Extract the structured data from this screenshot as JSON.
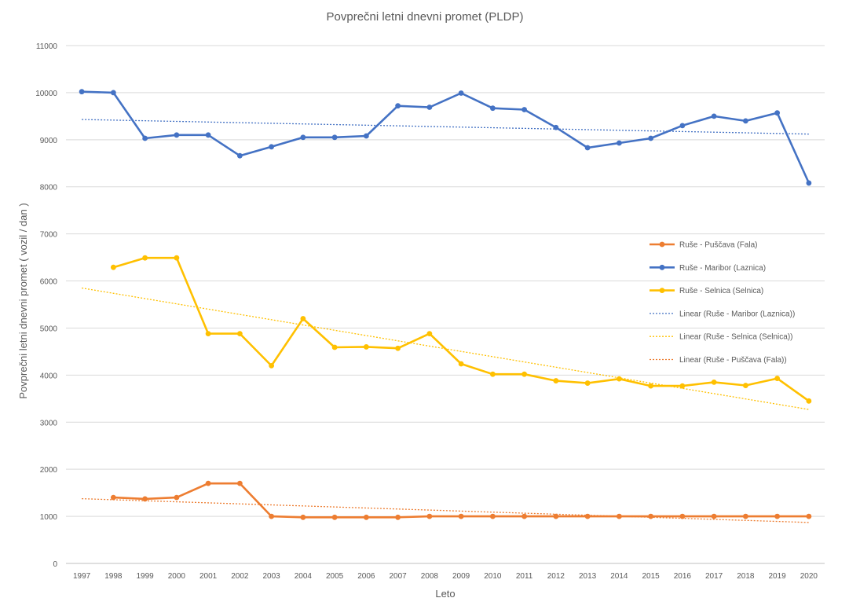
{
  "chart_data": {
    "type": "line",
    "title": "Povprečni letni dnevni promet (PLDP)",
    "xlabel": "Leto",
    "ylabel": "Povprečni letni dnevni promet  ( vozil / dan )",
    "ylim": [
      0,
      11000
    ],
    "yticks": [
      0,
      1000,
      2000,
      3000,
      4000,
      5000,
      6000,
      7000,
      8000,
      9000,
      10000,
      11000
    ],
    "categories": [
      "1997",
      "1998",
      "1999",
      "2000",
      "2001",
      "2002",
      "2003",
      "2004",
      "2005",
      "2006",
      "2007",
      "2008",
      "2009",
      "2010",
      "2011",
      "2012",
      "2013",
      "2014",
      "2015",
      "2016",
      "2017",
      "2018",
      "2019",
      "2020"
    ],
    "grid": true,
    "legend_position": "right",
    "series": [
      {
        "name": "Ruše - Puščava (Fala)",
        "color": "#ed7d31",
        "values": [
          null,
          1400,
          1370,
          1400,
          1700,
          1700,
          1000,
          980,
          980,
          980,
          980,
          1000,
          1000,
          1000,
          1000,
          1000,
          1000,
          1000,
          1000,
          1000,
          1000,
          1000,
          1000,
          1000
        ]
      },
      {
        "name": "Ruše - Maribor (Laznica)",
        "color": "#4472c4",
        "values": [
          10020,
          10000,
          9030,
          9100,
          9100,
          8660,
          8850,
          9050,
          9050,
          9080,
          9720,
          9690,
          9990,
          9670,
          9640,
          9260,
          8830,
          8930,
          9030,
          9300,
          9500,
          9400,
          9570,
          8080
        ]
      },
      {
        "name": "Ruše - Selnica (Selnica)",
        "color": "#ffc000",
        "values": [
          null,
          6290,
          6490,
          6490,
          4880,
          4880,
          4200,
          5200,
          4590,
          4600,
          4570,
          4880,
          4240,
          4020,
          4020,
          3880,
          3830,
          3920,
          3770,
          3770,
          3850,
          3780,
          3930,
          3450
        ]
      }
    ],
    "trendlines": [
      {
        "name": "Linear (Ruše - Maribor (Laznica))",
        "color": "#4472c4",
        "start": 9430,
        "end": 9120
      },
      {
        "name": "Linear (Ruše - Selnica (Selnica))",
        "color": "#ffc000",
        "start": 5850,
        "end": 3270
      },
      {
        "name": "Linear (Ruše - Puščava (Fala))",
        "color": "#ed7d31",
        "start": 1375,
        "end": 870
      }
    ],
    "legend_order": [
      "Ruše - Puščava (Fala)",
      "Ruše - Maribor (Laznica)",
      "Ruše - Selnica (Selnica)",
      "Linear (Ruše - Maribor (Laznica))",
      "Linear (Ruše - Selnica (Selnica))",
      "Linear (Ruše - Puščava (Fala))"
    ]
  }
}
